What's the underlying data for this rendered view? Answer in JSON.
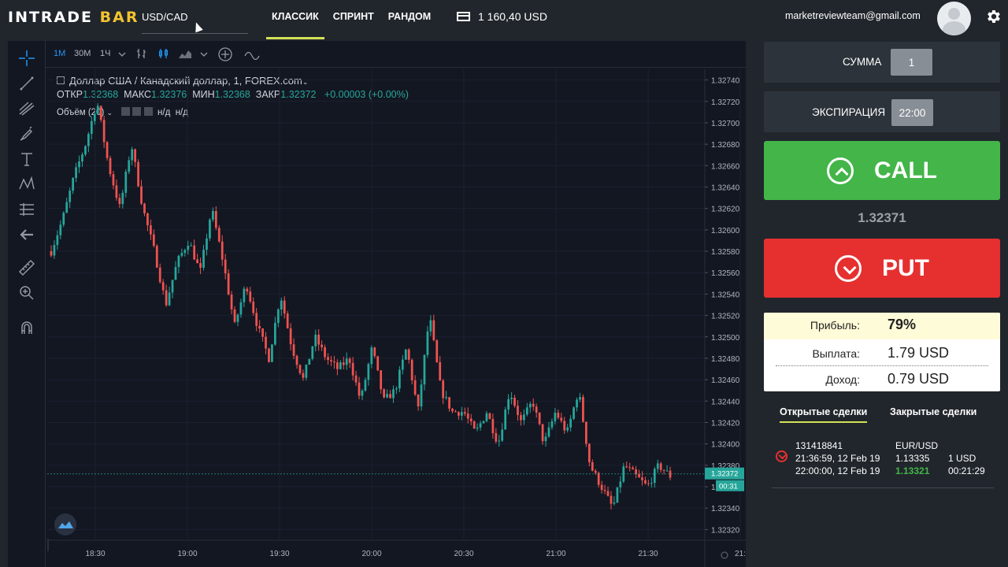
{
  "app": {
    "logo_main": "INTRADE",
    "logo_accent": "BAR",
    "pair": "USD/CAD",
    "modes": [
      "КЛАССИК",
      "СПРИНТ",
      "РАНДОМ"
    ],
    "active_mode": "КЛАССИК",
    "balance": "1 160,40 USD",
    "email": "marketreviewteam@gmail.com"
  },
  "chart_toolbar": {
    "intervals": [
      "1М",
      "30М",
      "1Ч"
    ],
    "active_interval": "1М"
  },
  "chart_legend": {
    "title": "Доллар США / Канадский доллар, 1, FOREX.com",
    "open_label": "ОТКР",
    "open": "1.32368",
    "high_label": "МАКС",
    "high": "1.32376",
    "low_label": "МИН",
    "low": "1.32368",
    "close_label": "ЗАКР",
    "close": "1.32372",
    "change": "+0.00003 (+0.00%)",
    "volume_label": "Объём (20)",
    "volume_v1": "н/д",
    "volume_v2": "н/д"
  },
  "chart_data": {
    "type": "candlestick",
    "x_ticks": [
      "18:30",
      "19:00",
      "19:30",
      "20:00",
      "20:30",
      "21:00",
      "21:30",
      "21:"
    ],
    "y_ticks": [
      "1.32740",
      "1.32720",
      "1.32700",
      "1.32680",
      "1.32660",
      "1.32640",
      "1.32620",
      "1.32600",
      "1.32580",
      "1.32560",
      "1.32540",
      "1.32520",
      "1.32500",
      "1.32480",
      "1.32460",
      "1.32440",
      "1.32420",
      "1.32400",
      "1.32380",
      "1.32360",
      "1.32340",
      "1.32320"
    ],
    "ylim": [
      1.3231,
      1.3275
    ],
    "current_price_label": "1.32372",
    "countdown_label": "00:31",
    "path": [
      1.3258,
      1.3261,
      1.3265,
      1.3268,
      1.3272,
      1.3266,
      1.3262,
      1.3268,
      1.3262,
      1.3258,
      1.3253,
      1.3257,
      1.3259,
      1.3256,
      1.3262,
      1.3257,
      1.3251,
      1.3255,
      1.3251,
      1.3248,
      1.3254,
      1.3249,
      1.3246,
      1.325,
      1.3248,
      1.3247,
      1.3248,
      1.3244,
      1.3249,
      1.3244,
      1.3245,
      1.3249,
      1.3243,
      1.3252,
      1.3245,
      1.3243,
      1.3243,
      1.3241,
      1.3243,
      1.324,
      1.3245,
      1.3242,
      1.3244,
      1.324,
      1.3243,
      1.3241,
      1.3245,
      1.3238,
      1.3236,
      1.3234,
      1.3238,
      1.3237,
      1.3236,
      1.3238,
      1.3237
    ]
  },
  "trade": {
    "amount_label": "СУММА",
    "amount": "1",
    "expiration_label": "ЭКСПИРАЦИЯ",
    "expiration": "22:00",
    "call_label": "CALL",
    "put_label": "PUT",
    "current_price": "1.32371",
    "profit_label": "Прибыль:",
    "profit_value": "79%",
    "payout_label": "Выплата:",
    "payout_value": "1.79 USD",
    "income_label": "Доход:",
    "income_value": "0.79 USD"
  },
  "deals": {
    "tab_open": "Открытые сделки",
    "tab_closed": "Закрытые сделки",
    "items": [
      {
        "id": "131418841",
        "pair": "EUR/USD",
        "open_time": "21:36:59, 12 Feb 19",
        "open_price": "1.13335",
        "amount": "1 USD",
        "close_time": "22:00:00, 12 Feb 19",
        "current_price": "1.13321",
        "remaining": "00:21:29"
      }
    ]
  },
  "colors": {
    "up": "#26a69a",
    "down": "#ef5350",
    "call": "#43b549",
    "put": "#e5302f",
    "accent": "#d4e157"
  }
}
